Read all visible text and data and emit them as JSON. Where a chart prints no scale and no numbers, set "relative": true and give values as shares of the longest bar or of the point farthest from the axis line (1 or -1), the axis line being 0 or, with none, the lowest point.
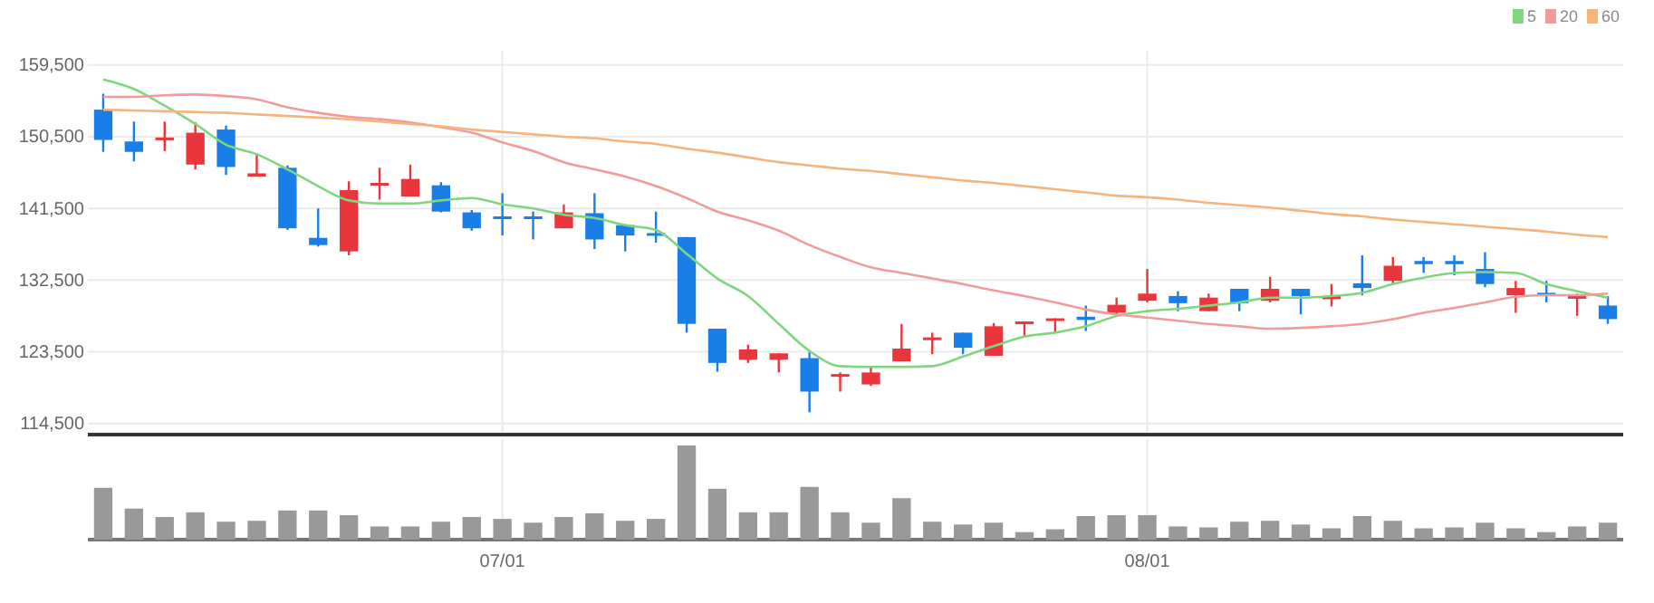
{
  "chart_data": [
    {
      "type": "candlestick",
      "ohlc": [
        [
          153900,
          155900,
          148600,
          150100
        ],
        [
          149900,
          152400,
          147400,
          148600
        ],
        [
          150100,
          152400,
          148700,
          150400
        ],
        [
          147000,
          152300,
          146400,
          151000
        ],
        [
          151400,
          151900,
          145700,
          146700
        ],
        [
          145500,
          148300,
          145500,
          145900
        ],
        [
          146600,
          146900,
          138800,
          139000
        ],
        [
          137800,
          141500,
          136700,
          136900
        ],
        [
          136100,
          144900,
          135600,
          143800
        ],
        [
          144400,
          146600,
          142600,
          144700
        ],
        [
          143000,
          147000,
          143000,
          145200
        ],
        [
          144400,
          144800,
          141000,
          141100
        ],
        [
          141000,
          141300,
          138700,
          139000
        ],
        [
          140500,
          143400,
          138100,
          140200
        ],
        [
          140500,
          141100,
          137600,
          140200
        ],
        [
          139000,
          142000,
          139000,
          141000
        ],
        [
          140900,
          143400,
          136400,
          137600
        ],
        [
          139400,
          139400,
          136100,
          138100
        ],
        [
          138400,
          141100,
          137200,
          138100
        ],
        [
          137900,
          137900,
          125900,
          127000
        ],
        [
          126400,
          126400,
          121000,
          122100
        ],
        [
          122500,
          124400,
          122100,
          123800
        ],
        [
          122500,
          123300,
          120900,
          123300
        ],
        [
          122700,
          123500,
          115900,
          118500
        ],
        [
          120400,
          120900,
          118500,
          120700
        ],
        [
          119400,
          121700,
          119200,
          120900
        ],
        [
          122300,
          127000,
          122300,
          123900
        ],
        [
          125000,
          125900,
          123200,
          125300
        ],
        [
          125900,
          125900,
          123200,
          124000
        ],
        [
          123000,
          127100,
          123000,
          126700
        ],
        [
          127000,
          127300,
          125400,
          127300
        ],
        [
          127400,
          127700,
          125900,
          127700
        ],
        [
          127900,
          129300,
          126100,
          127500
        ],
        [
          128400,
          130300,
          128200,
          129400
        ],
        [
          129900,
          133900,
          129700,
          130800
        ],
        [
          130500,
          131100,
          128600,
          129600
        ],
        [
          128600,
          130800,
          128600,
          130300
        ],
        [
          131400,
          131400,
          128600,
          129600
        ],
        [
          129900,
          132900,
          129700,
          131400
        ],
        [
          131400,
          131400,
          128200,
          130500
        ],
        [
          130100,
          132000,
          129200,
          130500
        ],
        [
          132100,
          135600,
          130600,
          131500
        ],
        [
          132400,
          135400,
          132000,
          134300
        ],
        [
          134900,
          135400,
          133400,
          134500
        ],
        [
          134900,
          135600,
          133100,
          134500
        ],
        [
          133900,
          136000,
          131600,
          132000
        ],
        [
          130600,
          132400,
          128400,
          131500
        ],
        [
          130900,
          132400,
          129700,
          130500
        ],
        [
          130200,
          130800,
          128000,
          130500
        ],
        [
          129300,
          130500,
          127000,
          127600
        ]
      ],
      "colors": [
        "#1a7ee8",
        "#1a7ee8",
        "#e8363c",
        "#e8363c",
        "#1a7ee8",
        "#e8363c",
        "#1a7ee8",
        "#1a7ee8",
        "#e8363c",
        "#e8363c",
        "#e8363c",
        "#1a7ee8",
        "#1a7ee8",
        "#1a7ee8",
        "#1a7ee8",
        "#e8363c",
        "#1a7ee8",
        "#1a7ee8",
        "#1a7ee8",
        "#1a7ee8",
        "#1a7ee8",
        "#e8363c",
        "#e8363c",
        "#1a7ee8",
        "#e8363c",
        "#e8363c",
        "#e8363c",
        "#e8363c",
        "#1a7ee8",
        "#e8363c",
        "#e8363c",
        "#e8363c",
        "#1a7ee8",
        "#e8363c",
        "#e8363c",
        "#1a7ee8",
        "#e8363c",
        "#1a7ee8",
        "#e8363c",
        "#1a7ee8",
        "#e8363c",
        "#1a7ee8",
        "#e8363c",
        "#1a7ee8",
        "#1a7ee8",
        "#1a7ee8",
        "#e8363c",
        "#1a7ee8",
        "#e8363c",
        "#1a7ee8"
      ],
      "series": [
        {
          "name": "5",
          "type": "line",
          "color": "#7fd67f",
          "values": [
            157700,
            156500,
            154400,
            152100,
            149500,
            148300,
            146400,
            144300,
            142500,
            142100,
            142100,
            142500,
            142800,
            142000,
            141500,
            140700,
            140300,
            139400,
            138800,
            135800,
            132700,
            130500,
            127000,
            123600,
            121700,
            121600,
            121600,
            121700,
            122900,
            124200,
            125400,
            125900,
            126700,
            128000,
            128600,
            128900,
            129300,
            129700,
            130300,
            130300,
            130500,
            130900,
            132000,
            132800,
            133400,
            133500,
            133400,
            132000,
            131100,
            130300
          ]
        },
        {
          "name": "20",
          "type": "line",
          "color": "#f29b9b",
          "values": [
            155500,
            155500,
            155700,
            155800,
            155600,
            155200,
            154200,
            153500,
            153000,
            152700,
            152300,
            151700,
            151000,
            149800,
            148700,
            147300,
            146400,
            145500,
            144300,
            142800,
            141100,
            140000,
            138700,
            136900,
            135400,
            134100,
            133400,
            132700,
            132000,
            131200,
            130500,
            129700,
            128800,
            128200,
            127800,
            127400,
            127000,
            126700,
            126400,
            126500,
            126700,
            127000,
            127600,
            128400,
            129000,
            129700,
            130400,
            130600,
            130600,
            130800
          ]
        },
        {
          "name": "60",
          "type": "line",
          "color": "#f5b47c",
          "values": [
            153900,
            153800,
            153700,
            153600,
            153500,
            153300,
            153100,
            152900,
            152700,
            152400,
            152100,
            151800,
            151400,
            151100,
            150800,
            150500,
            150300,
            149900,
            149600,
            149000,
            148500,
            147900,
            147300,
            146900,
            146500,
            146200,
            145800,
            145400,
            145000,
            144700,
            144300,
            143900,
            143500,
            143100,
            142900,
            142600,
            142200,
            141900,
            141600,
            141200,
            140800,
            140500,
            140100,
            139800,
            139500,
            139200,
            138900,
            138600,
            138200,
            137900
          ]
        }
      ],
      "ylim": [
        113100,
        161300
      ],
      "yticks": [
        {
          "value": 114500,
          "label": "114,500"
        },
        {
          "value": 123500,
          "label": "123,500"
        },
        {
          "value": 132500,
          "label": "132,500"
        },
        {
          "value": 141500,
          "label": "141,500"
        },
        {
          "value": 150500,
          "label": "150,500"
        },
        {
          "value": 159500,
          "label": "159,500"
        }
      ],
      "grid": true,
      "legend": "top right",
      "tick_labels": "y"
    },
    {
      "type": "bar",
      "relative": true,
      "color": "#999999",
      "categories": [
        null,
        null,
        null,
        null,
        null,
        null,
        null,
        null,
        null,
        null,
        null,
        null,
        null,
        "07/01",
        null,
        null,
        null,
        null,
        null,
        null,
        null,
        null,
        null,
        null,
        null,
        null,
        null,
        null,
        null,
        null,
        null,
        null,
        null,
        null,
        "08/01",
        null,
        null,
        null,
        null,
        null,
        null,
        null,
        null,
        null,
        null,
        null,
        null,
        null,
        null,
        null
      ],
      "values": [
        0.55,
        0.33,
        0.24,
        0.29,
        0.19,
        0.2,
        0.31,
        0.31,
        0.26,
        0.14,
        0.14,
        0.19,
        0.24,
        0.22,
        0.18,
        0.24,
        0.28,
        0.2,
        0.22,
        1,
        0.54,
        0.29,
        0.29,
        0.56,
        0.29,
        0.18,
        0.44,
        0.19,
        0.16,
        0.18,
        0.08,
        0.11,
        0.25,
        0.26,
        0.26,
        0.14,
        0.13,
        0.19,
        0.2,
        0.16,
        0.12,
        0.25,
        0.2,
        0.12,
        0.13,
        0.18,
        0.12,
        0.08,
        0.14,
        0.18
      ],
      "grid": true
    }
  ]
}
